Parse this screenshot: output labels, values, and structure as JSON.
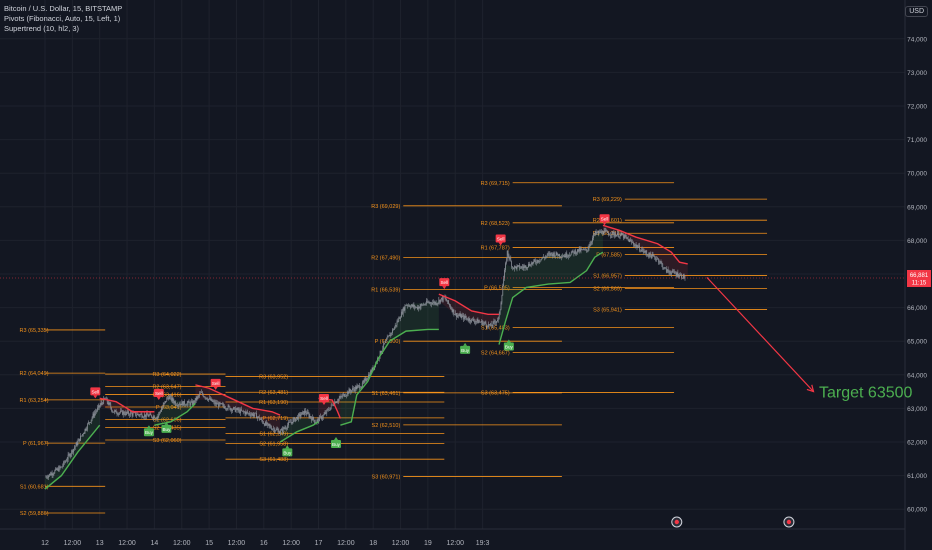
{
  "header": {
    "symbol_line": "Bitcoin / U.S. Dollar, 15, BITSTAMP",
    "indicator_1": "Pivots (Fibonacci, Auto, 15, Left, 1)",
    "indicator_2": "Supertrend (10, hl2, 3)",
    "currency": "USD"
  },
  "colors": {
    "background": "#131722",
    "grid": "#1e222d",
    "candle": "#8d929b",
    "pivot": "#f7931a",
    "supertrend_up": "#4caf50",
    "supertrend_down": "#f23645",
    "sell": "#f23645",
    "buy": "#4caf50",
    "annotation": "#4caf50",
    "arrow": "#f23645"
  },
  "chart_data": {
    "type": "candlestick",
    "ylim": [
      60000,
      74500
    ],
    "y_ticks": [
      "60,000",
      "61,000",
      "62,000",
      "63,000",
      "64,000",
      "65,000",
      "66,000",
      "67,000",
      "68,000",
      "69,000",
      "70,000",
      "71,000",
      "72,000",
      "73,000",
      "74,000"
    ],
    "x_ticks": [
      "12",
      "12:00",
      "13",
      "12:00",
      "14",
      "12:00",
      "15",
      "12:00",
      "16",
      "12:00",
      "17",
      "12:00",
      "18",
      "12:00",
      "19",
      "12:00",
      "19:3"
    ],
    "price_path": [
      [
        0.0,
        60950
      ],
      [
        0.3,
        61250
      ],
      [
        0.6,
        62000
      ],
      [
        0.9,
        62850
      ],
      [
        1.1,
        63300
      ],
      [
        1.25,
        62900
      ],
      [
        1.5,
        62850
      ],
      [
        1.8,
        62800
      ],
      [
        2.05,
        62750
      ],
      [
        2.15,
        63050
      ],
      [
        2.25,
        63350
      ],
      [
        2.4,
        63150
      ],
      [
        2.7,
        63150
      ],
      [
        2.85,
        63450
      ],
      [
        3.1,
        63150
      ],
      [
        3.4,
        63000
      ],
      [
        3.6,
        62900
      ],
      [
        3.85,
        62800
      ],
      [
        4.05,
        62500
      ],
      [
        4.3,
        62300
      ],
      [
        4.5,
        62600
      ],
      [
        4.75,
        62900
      ],
      [
        4.95,
        62600
      ],
      [
        5.1,
        62800
      ],
      [
        5.3,
        63200
      ],
      [
        5.55,
        63500
      ],
      [
        5.8,
        63700
      ],
      [
        6.0,
        64200
      ],
      [
        6.2,
        64900
      ],
      [
        6.4,
        65450
      ],
      [
        6.6,
        66100
      ],
      [
        6.8,
        66000
      ],
      [
        7.0,
        66150
      ],
      [
        7.15,
        66150
      ],
      [
        7.3,
        66300
      ],
      [
        7.5,
        65800
      ],
      [
        7.75,
        65650
      ],
      [
        8.0,
        65550
      ],
      [
        8.15,
        65450
      ],
      [
        8.3,
        65700
      ],
      [
        8.38,
        66800
      ],
      [
        8.45,
        67650
      ],
      [
        8.55,
        67200
      ],
      [
        8.75,
        67200
      ],
      [
        9.0,
        67400
      ],
      [
        9.25,
        67600
      ],
      [
        9.5,
        67550
      ],
      [
        9.75,
        67700
      ],
      [
        9.9,
        67700
      ],
      [
        10.05,
        68200
      ],
      [
        10.2,
        68250
      ],
      [
        10.35,
        68200
      ],
      [
        10.55,
        68150
      ],
      [
        10.8,
        67850
      ],
      [
        11.0,
        67600
      ],
      [
        11.2,
        67450
      ],
      [
        11.35,
        67100
      ],
      [
        11.55,
        67000
      ],
      [
        11.7,
        66900
      ]
    ],
    "supertrend": [
      {
        "dir": "up",
        "points": [
          [
            0.0,
            60600
          ],
          [
            0.3,
            61000
          ],
          [
            0.6,
            61700
          ],
          [
            0.9,
            62300
          ],
          [
            1.0,
            62500
          ]
        ]
      },
      {
        "dir": "down",
        "points": [
          [
            1.0,
            63300
          ],
          [
            1.3,
            63200
          ],
          [
            1.6,
            62900
          ],
          [
            2.0,
            62900
          ]
        ]
      },
      {
        "dir": "up",
        "points": [
          [
            2.0,
            62500
          ],
          [
            2.3,
            62600
          ],
          [
            2.6,
            62900
          ],
          [
            2.75,
            63150
          ]
        ]
      },
      {
        "dir": "down",
        "points": [
          [
            2.75,
            63700
          ],
          [
            3.0,
            63600
          ],
          [
            3.4,
            63300
          ],
          [
            3.8,
            63000
          ],
          [
            4.15,
            62900
          ],
          [
            4.3,
            62800
          ]
        ]
      },
      {
        "dir": "up",
        "points": [
          [
            4.3,
            62000
          ],
          [
            4.6,
            62300
          ],
          [
            4.9,
            62500
          ],
          [
            5.0,
            62600
          ]
        ]
      },
      {
        "dir": "down",
        "points": [
          [
            5.0,
            63300
          ],
          [
            5.25,
            63250
          ],
          [
            5.35,
            62900
          ],
          [
            5.4,
            62700
          ]
        ]
      },
      {
        "dir": "up",
        "points": [
          [
            5.4,
            62500
          ],
          [
            5.6,
            62600
          ],
          [
            5.7,
            63400
          ],
          [
            5.9,
            63800
          ],
          [
            6.1,
            64500
          ],
          [
            6.3,
            65000
          ],
          [
            6.6,
            65300
          ],
          [
            7.0,
            65350
          ],
          [
            7.2,
            65350
          ]
        ]
      },
      {
        "dir": "down",
        "points": [
          [
            7.2,
            66400
          ],
          [
            7.5,
            66200
          ],
          [
            7.8,
            65900
          ],
          [
            8.1,
            65800
          ],
          [
            8.3,
            65800
          ]
        ]
      },
      {
        "dir": "up",
        "points": [
          [
            8.3,
            64900
          ],
          [
            8.42,
            65600
          ],
          [
            8.55,
            66300
          ],
          [
            8.8,
            66600
          ],
          [
            9.2,
            66700
          ],
          [
            9.6,
            66750
          ],
          [
            9.9,
            67100
          ],
          [
            10.05,
            67500
          ],
          [
            10.2,
            67650
          ]
        ]
      },
      {
        "dir": "down",
        "points": [
          [
            10.2,
            68450
          ],
          [
            10.5,
            68300
          ],
          [
            10.8,
            68100
          ],
          [
            11.2,
            67900
          ],
          [
            11.45,
            67650
          ],
          [
            11.6,
            67350
          ],
          [
            11.75,
            67300
          ]
        ]
      }
    ],
    "pivot_sets": [
      {
        "x_start": 0.0,
        "x_end": 1.1,
        "label_x": 0.12,
        "levels": [
          {
            "name": "R3",
            "label": "R3 (65,335)",
            "value": 65335
          },
          {
            "name": "R2",
            "label": "R2 (64,049)",
            "value": 64049
          },
          {
            "name": "R1",
            "label": "R1 (63,254)",
            "value": 63254
          },
          {
            "name": "P",
            "label": "P (61,967)",
            "value": 61967
          },
          {
            "name": "S1",
            "label": "S1 (60,681)",
            "value": 60681
          },
          {
            "name": "S2",
            "label": "S2 (59,886)",
            "value": 59886
          }
        ]
      },
      {
        "x_start": 1.1,
        "x_end": 3.3,
        "label_x": 2.55,
        "levels": [
          {
            "name": "R3",
            "label": "R3 (64,022)",
            "value": 64022
          },
          {
            "name": "R2",
            "label": "R2 (63,647)",
            "value": 63647
          },
          {
            "name": "R1",
            "label": "R1 (63,416)",
            "value": 63416
          },
          {
            "name": "P",
            "label": "P (63,041)",
            "value": 63041
          },
          {
            "name": "S1",
            "label": "S1 (62,666)",
            "value": 62666
          },
          {
            "name": "S2",
            "label": "S2 (62,435)",
            "value": 62435
          },
          {
            "name": "S3",
            "label": "S3 (62,060)",
            "value": 62060
          }
        ]
      },
      {
        "x_start": 3.3,
        "x_end": 7.3,
        "label_x": 4.5,
        "levels": [
          {
            "name": "R3",
            "label": "R3 (63,952)",
            "value": 63952
          },
          {
            "name": "R2",
            "label": "R2 (63,481)",
            "value": 63481
          },
          {
            "name": "R1",
            "label": "R1 (63,190)",
            "value": 63190
          },
          {
            "name": "P",
            "label": "P (62,719)",
            "value": 62719
          },
          {
            "name": "S1",
            "label": "S1 (62,249)",
            "value": 62249
          },
          {
            "name": "S2",
            "label": "S2 (61,958)",
            "value": 61958
          },
          {
            "name": "S3",
            "label": "S3 (61,488)",
            "value": 61488
          }
        ]
      },
      {
        "x_start": 6.55,
        "x_end": 9.45,
        "label_x": 6.55,
        "levels": [
          {
            "name": "R3",
            "label": "R3 (69,029)",
            "value": 69029
          },
          {
            "name": "R2",
            "label": "R2 (67,490)",
            "value": 67490
          },
          {
            "name": "R1",
            "label": "R1 (66,539)",
            "value": 66539
          },
          {
            "name": "P",
            "label": "P (65,000)",
            "value": 65000
          },
          {
            "name": "S1",
            "label": "S1 (63,461)",
            "value": 63461
          },
          {
            "name": "S2",
            "label": "S2 (62,510)",
            "value": 62510
          },
          {
            "name": "S3",
            "label": "S3 (60,971)",
            "value": 60971
          }
        ]
      },
      {
        "x_start": 8.55,
        "x_end": 11.5,
        "label_x": 8.55,
        "levels": [
          {
            "name": "R3",
            "label": "R3 (69,715)",
            "value": 69715
          },
          {
            "name": "R2",
            "label": "R2 (68,523)",
            "value": 68523
          },
          {
            "name": "R1",
            "label": "R1 (67,787)",
            "value": 67787
          },
          {
            "name": "P",
            "label": "P (66,595)",
            "value": 66595
          },
          {
            "name": "S1",
            "label": "S1 (65,403)",
            "value": 65403
          },
          {
            "name": "S2",
            "label": "S2 (64,667)",
            "value": 64667
          },
          {
            "name": "S3",
            "label": "S3 (63,475)",
            "value": 63475
          }
        ]
      },
      {
        "x_start": 10.6,
        "x_end": 13.2,
        "label_x": 10.6,
        "levels": [
          {
            "name": "R3",
            "label": "R3 (69,229)",
            "value": 69229
          },
          {
            "name": "R2",
            "label": "R2 (68,601)",
            "value": 68601
          },
          {
            "name": "R1",
            "label": "R1 (68,213)",
            "value": 68213
          },
          {
            "name": "P",
            "label": "P (67,585)",
            "value": 67585
          },
          {
            "name": "S1",
            "label": "S1 (66,957)",
            "value": 66957
          },
          {
            "name": "S2",
            "label": "S2 (66,569)",
            "value": 66569
          },
          {
            "name": "S3",
            "label": "S3 (65,941)",
            "value": 65941
          }
        ]
      }
    ],
    "signals": [
      {
        "type": "Sell",
        "x": 0.92,
        "y": 63300
      },
      {
        "type": "Buy",
        "x": 1.9,
        "y": 62500
      },
      {
        "type": "Buy",
        "x": 2.22,
        "y": 62600
      },
      {
        "type": "Sell",
        "x": 2.08,
        "y": 63250
      },
      {
        "type": "Sell",
        "x": 3.12,
        "y": 63550
      },
      {
        "type": "Buy",
        "x": 4.43,
        "y": 61900
      },
      {
        "type": "Sell",
        "x": 5.1,
        "y": 63100
      },
      {
        "type": "Buy",
        "x": 5.32,
        "y": 62150
      },
      {
        "type": "Sell",
        "x": 7.3,
        "y": 66550
      },
      {
        "type": "Buy",
        "x": 7.68,
        "y": 64950
      },
      {
        "type": "Sell",
        "x": 8.33,
        "y": 67850
      },
      {
        "type": "Buy",
        "x": 8.48,
        "y": 65050
      },
      {
        "type": "Sell",
        "x": 10.23,
        "y": 68450
      }
    ],
    "current_price": {
      "label": "66,881",
      "countdown": "11:15",
      "value": 66881
    },
    "annotation": {
      "text": "Target 63500",
      "x": 14.15,
      "y": 63500
    },
    "arrow": {
      "from": [
        12.1,
        66900
      ],
      "to": [
        14.05,
        63500
      ]
    }
  }
}
